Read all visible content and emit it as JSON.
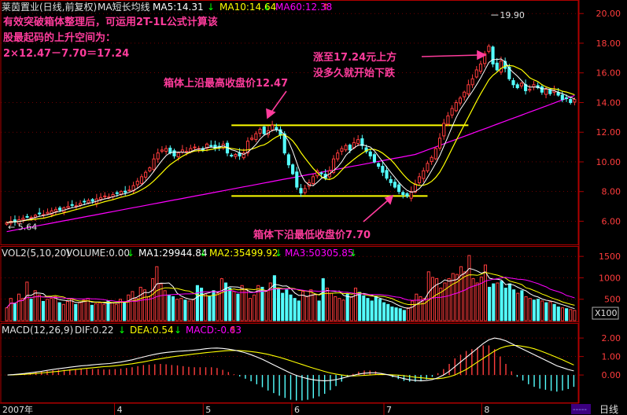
{
  "header": {
    "stock": "莱茵置业(日线,前复权)",
    "indicator": "MA短长均线",
    "ma5": "MA5:14.31",
    "ma10": "MA10:14.64",
    "ma60": "MA60:12.38"
  },
  "annotations": {
    "intro_line1": "有效突破箱体整理后，可运用2T-1L公式计算该",
    "intro_line2": "股最起码的上升空间为：",
    "intro_line3": "2×12.47－7.70＝17.24",
    "top_label": "箱体上沿最高收盘价12.47",
    "bottom_label": "箱体下沿最低收盘价7.70",
    "rise_line1": "涨至17.24元上方",
    "rise_line2": "没多久就开始下跌"
  },
  "vol_header": {
    "name": "VOL2(5,10,20)",
    "volume": "VOLUME:0.00",
    "ma1": "MA1:29944.84",
    "ma2": "MA2:35499.92",
    "ma3": "MA3:50305.85"
  },
  "macd_header": {
    "name": "MACD(12,26,9)",
    "dif": "DIF:0.22",
    "dea": "DEA:0.54",
    "macd": "MACD:-0.63"
  },
  "footer": {
    "year": "2007年",
    "months": [
      "4",
      "5",
      "6",
      "7",
      "8"
    ],
    "period": "日线"
  },
  "colors": {
    "up": "#ff3c3c",
    "down": "#54ffff",
    "ma5": "#ffffff",
    "ma10": "#ffff00",
    "ma60": "#ff00ff",
    "box": "#ffff00",
    "annotation": "#ff3c9c",
    "axis": "#b00000"
  },
  "chart_data": [
    {
      "type": "candlestick",
      "yticks": [
        6.0,
        8.0,
        10.0,
        12.0,
        14.0,
        16.0,
        18.0,
        20.0
      ],
      "ytick_labels": [
        "6.00",
        "8.00",
        "10.00",
        "12.00",
        "14.00",
        "16.00",
        "18.00",
        "20.00"
      ],
      "ylim": [
        4.7,
        20.7
      ],
      "box_top": 12.47,
      "box_bottom": 7.7,
      "high_label": "19.90",
      "low_label": "5.64",
      "closes": [
        5.9,
        6.0,
        5.95,
        6.1,
        6.2,
        6.3,
        6.25,
        6.4,
        6.5,
        6.45,
        6.6,
        6.7,
        6.8,
        6.75,
        6.9,
        7.0,
        7.1,
        7.05,
        7.2,
        7.3,
        7.4,
        7.35,
        7.5,
        7.6,
        7.7,
        7.65,
        7.8,
        7.9,
        8.0,
        7.95,
        8.1,
        8.4,
        8.7,
        9.0,
        9.3,
        9.6,
        10.2,
        10.6,
        10.8,
        10.9,
        10.6,
        10.4,
        10.6,
        10.8,
        10.7,
        10.9,
        11.0,
        10.9,
        10.8,
        11.2,
        11.1,
        10.9,
        11.0,
        11.2,
        10.6,
        10.4,
        10.5,
        10.4,
        10.6,
        11.4,
        11.6,
        11.9,
        12.2,
        11.9,
        12.1,
        12.47,
        12.2,
        11.8,
        10.6,
        9.8,
        9.2,
        8.3,
        7.9,
        8.2,
        8.6,
        9.0,
        9.4,
        9.2,
        8.9,
        9.4,
        10.2,
        10.6,
        10.9,
        11.1,
        10.8,
        11.3,
        11.5,
        11.1,
        10.7,
        10.4,
        10.0,
        9.7,
        9.3,
        8.9,
        8.6,
        8.3,
        8.0,
        7.8,
        7.7,
        8.0,
        8.5,
        9.0,
        9.4,
        9.9,
        10.3,
        10.9,
        11.6,
        12.6,
        13.1,
        13.6,
        14.0,
        14.3,
        14.7,
        15.2,
        15.6,
        16.2,
        16.6,
        17.3,
        17.8,
        16.6,
        16.2,
        16.8,
        16.3,
        15.6,
        15.2,
        15.0,
        15.3,
        14.8,
        14.9,
        15.2,
        15.0,
        14.7,
        14.9,
        14.6,
        14.8,
        14.5,
        14.2,
        14.3,
        14.0,
        14.2
      ]
    },
    {
      "type": "bar",
      "name": "volume",
      "yticks": [
        500,
        1000,
        1500
      ],
      "ytick_labels": [
        "500",
        "1000",
        "1500"
      ],
      "ylim": [
        0,
        1650
      ],
      "unit_label": "X100",
      "values": [
        300,
        520,
        400,
        620,
        520,
        900,
        500,
        700,
        600,
        450,
        500,
        520,
        560,
        420,
        380,
        450,
        500,
        380,
        420,
        480,
        520,
        360,
        400,
        420,
        380,
        460,
        420,
        380,
        500,
        420,
        600,
        680,
        520,
        780,
        720,
        560,
        980,
        1260,
        860,
        700,
        600,
        560,
        500,
        520,
        480,
        460,
        500,
        820,
        760,
        620,
        560,
        700,
        640,
        980,
        880,
        760,
        680,
        620,
        820,
        740,
        520,
        600,
        820,
        780,
        700,
        880,
        1050,
        760,
        640,
        720,
        600,
        520,
        460,
        680,
        560,
        720,
        620,
        460,
        980,
        760,
        640,
        560,
        520,
        480,
        620,
        560,
        760,
        660,
        580,
        520,
        460,
        560,
        500,
        420,
        380,
        320,
        300,
        280,
        240,
        300,
        460,
        620,
        560,
        520,
        1140,
        1010,
        980,
        760,
        880,
        980,
        1100,
        1080,
        1260,
        1140,
        1520,
        980,
        880,
        1020,
        1300,
        780,
        860,
        880,
        920,
        760,
        860,
        720,
        640,
        700,
        560,
        520,
        480,
        500,
        460,
        420,
        440,
        380,
        320,
        300,
        280,
        260,
        240
      ]
    },
    {
      "type": "bar",
      "name": "macd",
      "yticks": [
        0,
        1,
        2
      ],
      "ytick_labels": [
        "0.00",
        "1.00",
        "2.00"
      ],
      "ylim": [
        -1.4,
        2.6
      ],
      "dif": [
        0,
        0.02,
        0.05,
        0.08,
        0.12,
        0.16,
        0.2,
        0.25,
        0.3,
        0.34,
        0.38,
        0.42,
        0.46,
        0.5,
        0.52,
        0.55,
        0.58,
        0.6,
        0.62,
        0.66,
        0.7,
        0.76,
        0.82,
        0.9,
        0.98,
        1.05,
        1.12,
        1.18,
        1.22,
        1.25,
        1.28,
        1.3,
        1.32,
        1.35,
        1.38,
        1.42,
        1.45,
        1.46,
        1.44,
        1.4,
        1.35,
        1.28,
        1.2,
        1.1,
        0.98,
        0.85,
        0.7,
        0.55,
        0.4,
        0.25,
        0.1,
        -0.02,
        -0.12,
        -0.2,
        -0.26,
        -0.3,
        -0.32,
        -0.3,
        -0.25,
        -0.18,
        -0.1,
        -0.02,
        0.05,
        0.1,
        0.12,
        0.12,
        0.08,
        0.02,
        -0.05,
        -0.12,
        -0.2,
        -0.26,
        -0.3,
        -0.32,
        -0.3,
        -0.25,
        -0.15,
        0,
        0.2,
        0.45,
        0.7,
        0.95,
        1.2,
        1.45,
        1.7,
        1.9,
        2.0,
        1.95,
        1.85,
        1.7,
        1.55,
        1.4,
        1.25,
        1.1,
        0.95,
        0.8,
        0.65,
        0.5,
        0.4,
        0.3,
        0.22
      ],
      "dea": [
        0,
        0.01,
        0.02,
        0.04,
        0.06,
        0.08,
        0.11,
        0.14,
        0.17,
        0.2,
        0.24,
        0.27,
        0.3,
        0.33,
        0.36,
        0.39,
        0.42,
        0.45,
        0.47,
        0.5,
        0.53,
        0.57,
        0.61,
        0.66,
        0.71,
        0.77,
        0.83,
        0.88,
        0.93,
        0.98,
        1.02,
        1.06,
        1.1,
        1.14,
        1.17,
        1.21,
        1.24,
        1.27,
        1.3,
        1.32,
        1.33,
        1.32,
        1.3,
        1.27,
        1.23,
        1.18,
        1.12,
        1.04,
        0.96,
        0.87,
        0.77,
        0.67,
        0.57,
        0.47,
        0.37,
        0.28,
        0.19,
        0.11,
        0.05,
        0,
        -0.04,
        -0.05,
        -0.04,
        -0.02,
        0,
        0.02,
        0.03,
        0.02,
        0.01,
        -0.01,
        -0.04,
        -0.08,
        -0.12,
        -0.15,
        -0.18,
        -0.2,
        -0.2,
        -0.16,
        -0.1,
        0,
        0.15,
        0.3,
        0.5,
        0.7,
        0.9,
        1.1,
        1.3,
        1.45,
        1.55,
        1.6,
        1.6,
        1.55,
        1.5,
        1.42,
        1.32,
        1.2,
        1.08,
        0.95,
        0.82,
        0.68,
        0.54
      ],
      "histogram": [
        0,
        0.02,
        0.06,
        0.08,
        0.12,
        0.16,
        0.18,
        0.22,
        0.26,
        0.28,
        0.28,
        0.3,
        0.32,
        0.34,
        0.32,
        0.32,
        0.32,
        0.3,
        0.3,
        0.32,
        0.34,
        0.38,
        0.42,
        0.48,
        0.54,
        0.56,
        0.58,
        0.6,
        0.58,
        0.54,
        0.52,
        0.48,
        0.44,
        0.42,
        0.42,
        0.42,
        0.42,
        0.38,
        0.28,
        0.16,
        0.04,
        -0.08,
        -0.2,
        -0.34,
        -0.5,
        -0.66,
        -0.84,
        -0.98,
        -1.12,
        -1.24,
        -1.34,
        -1.38,
        -1.38,
        -1.34,
        -1.26,
        -1.16,
        -1.02,
        -0.82,
        -0.6,
        -0.36,
        -0.12,
        0.06,
        0.18,
        0.24,
        0.24,
        0.2,
        0.1,
        0,
        -0.12,
        -0.22,
        -0.32,
        -0.36,
        -0.36,
        -0.34,
        -0.24,
        -0.1,
        0.1,
        0.32,
        0.6,
        0.9,
        1.1,
        1.3,
        1.4,
        1.5,
        1.6,
        1.6,
        1.4,
        1.0,
        0.6,
        0.2,
        -0.1,
        -0.3,
        -0.5,
        -0.64,
        -0.74,
        -0.8,
        -0.86,
        -0.9,
        -0.84,
        -0.76,
        -0.64
      ]
    }
  ]
}
